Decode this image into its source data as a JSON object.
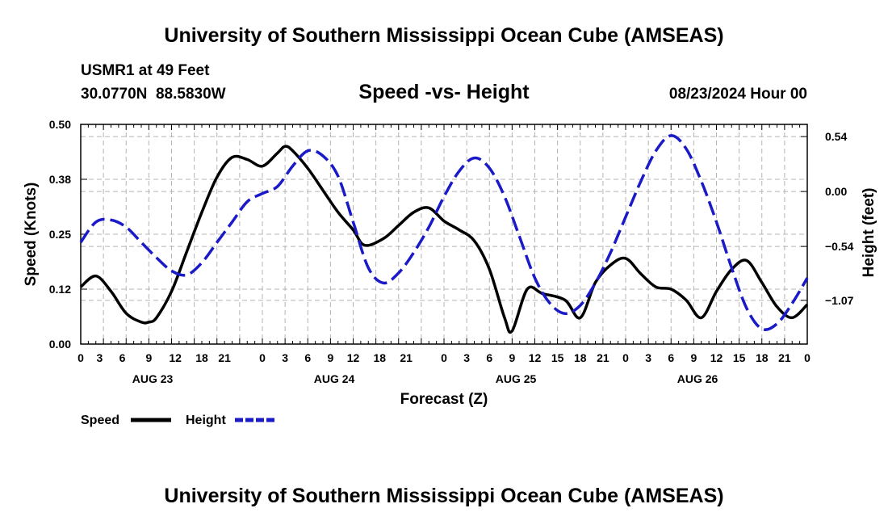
{
  "header": {
    "title": "University of Southern Mississippi Ocean Cube (AMSEAS)",
    "station": "USMR1 at 49 Feet",
    "coords": "30.0770N  88.5830W",
    "chart_title": "Speed -vs- Height",
    "timestamp": "08/23/2024 Hour 00"
  },
  "footer": {
    "title": "University of Southern Mississippi Ocean Cube (AMSEAS)"
  },
  "colors": {
    "speed": "#000000",
    "height": "#1a1ac8",
    "grid": "#b4b4b4"
  },
  "chart_data": {
    "type": "line",
    "title": "Speed -vs- Height",
    "xlabel": "Forecast (Z)",
    "ylabel": "Speed (Knots)",
    "y2label": "Height (feet)",
    "x_unit": "hours from 08/23/2024 00Z",
    "xlim": [
      0,
      96
    ],
    "ylim": [
      0,
      0.5
    ],
    "y2lim": [
      -1.5,
      0.66
    ],
    "x_tick_values": [
      0,
      3,
      6,
      9,
      12,
      15,
      18,
      21,
      24,
      27,
      30,
      33,
      36,
      39,
      42,
      45,
      48,
      51,
      54,
      57,
      60,
      63,
      66,
      69,
      72,
      75,
      78,
      81,
      84,
      87,
      90,
      93,
      96
    ],
    "x_tick_labels": [
      "0",
      "3",
      "6",
      "9",
      "12",
      "18",
      "21",
      "0",
      "3",
      "6",
      "9",
      "12",
      "18",
      "21",
      "0",
      "3",
      "6",
      "9",
      "12",
      "15",
      "18",
      "21",
      "0",
      "3",
      "6",
      "9",
      "12",
      "15",
      "18",
      "21",
      "0"
    ],
    "x_tick_positions": [
      0,
      2.5,
      5.5,
      9,
      12.5,
      16,
      19,
      24,
      27,
      30,
      33,
      36,
      39.5,
      43,
      48,
      51,
      54,
      57,
      60,
      63,
      66,
      69,
      72,
      75,
      78,
      81,
      84,
      87,
      90,
      93,
      96
    ],
    "day_labels": [
      {
        "label": "AUG 23",
        "x": 9.5
      },
      {
        "label": "AUG 24",
        "x": 33.5
      },
      {
        "label": "AUG 25",
        "x": 57.5
      },
      {
        "label": "AUG 26",
        "x": 81.5
      }
    ],
    "y_ticks": [
      0.0,
      0.125,
      0.25,
      0.375,
      0.5
    ],
    "y_tick_labels": [
      "0.00",
      "0.12",
      "0.25",
      "0.38",
      "0.50"
    ],
    "y2_ticks": [
      0.54,
      0.0,
      -0.54,
      -1.07
    ],
    "y2_tick_labels": [
      "0.54",
      "0.00",
      "−0.54",
      "−1.07"
    ],
    "series": [
      {
        "name": "Speed",
        "axis": "left",
        "style": "solid",
        "x": [
          0,
          2,
          4,
          6,
          8,
          9,
          10,
          12,
          14,
          16,
          18,
          20,
          22,
          24,
          26,
          27,
          28,
          30,
          32,
          34,
          36,
          37.5,
          40,
          42,
          44,
          46,
          48,
          50,
          52,
          54,
          56,
          57,
          59,
          61,
          64,
          66,
          68,
          70,
          72,
          74,
          76,
          78,
          80,
          82,
          84,
          86,
          88,
          90,
          92,
          94,
          96
        ],
        "values": [
          0.13,
          0.155,
          0.12,
          0.07,
          0.05,
          0.05,
          0.06,
          0.12,
          0.21,
          0.3,
          0.38,
          0.425,
          0.42,
          0.405,
          0.435,
          0.45,
          0.44,
          0.4,
          0.35,
          0.3,
          0.26,
          0.225,
          0.24,
          0.27,
          0.3,
          0.31,
          0.28,
          0.26,
          0.235,
          0.17,
          0.06,
          0.03,
          0.125,
          0.115,
          0.1,
          0.06,
          0.14,
          0.18,
          0.195,
          0.16,
          0.13,
          0.125,
          0.1,
          0.06,
          0.12,
          0.17,
          0.19,
          0.14,
          0.085,
          0.06,
          0.09
        ]
      },
      {
        "name": "Height",
        "axis": "right",
        "style": "dashed",
        "x": [
          0,
          2,
          4,
          6,
          8,
          10,
          12,
          14,
          16,
          18,
          20,
          22,
          24,
          26,
          28,
          30,
          32,
          34,
          36,
          38,
          40,
          42,
          44,
          46,
          48,
          50,
          52,
          54,
          56,
          58,
          60,
          62,
          64,
          66,
          68,
          70,
          72,
          74,
          76,
          78,
          80,
          82,
          84,
          86,
          88,
          90,
          92,
          94,
          96
        ],
        "values": [
          -0.5,
          -0.3,
          -0.28,
          -0.35,
          -0.5,
          -0.65,
          -0.78,
          -0.82,
          -0.7,
          -0.5,
          -0.3,
          -0.1,
          -0.02,
          0.05,
          0.25,
          0.4,
          0.35,
          0.15,
          -0.3,
          -0.75,
          -0.9,
          -0.8,
          -0.6,
          -0.35,
          -0.05,
          0.2,
          0.33,
          0.23,
          -0.05,
          -0.45,
          -0.85,
          -1.1,
          -1.2,
          -1.12,
          -0.9,
          -0.6,
          -0.25,
          0.1,
          0.4,
          0.55,
          0.42,
          0.1,
          -0.3,
          -0.75,
          -1.15,
          -1.35,
          -1.3,
          -1.1,
          -0.85
        ]
      }
    ],
    "legend": [
      {
        "label": "Speed",
        "style": "solid"
      },
      {
        "label": "Height",
        "style": "dashed"
      }
    ],
    "legend_position": "bottom-left",
    "grid": true
  }
}
